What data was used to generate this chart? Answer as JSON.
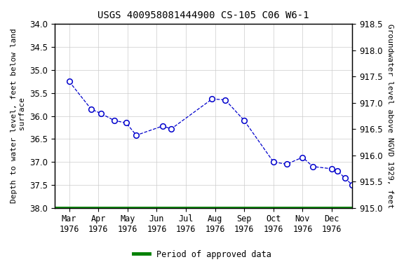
{
  "title": "USGS 400958081444900 CS-105 C06 W6-1",
  "ylabel_left": "Depth to water level, feet below land\n surface",
  "ylabel_right": "Groundwater level above NGVD 1929, feet",
  "xlabel_months": [
    "Mar\n1976",
    "Apr\n1976",
    "May\n1976",
    "Jun\n1976",
    "Jul\n1976",
    "Aug\n1976",
    "Sep\n1976",
    "Oct\n1976",
    "Nov\n1976",
    "Dec\n1976"
  ],
  "pts_x": [
    1.0,
    1.75,
    2.1,
    2.55,
    2.95,
    3.3,
    4.2,
    4.5,
    5.9,
    6.35,
    7.0,
    8.0,
    8.45,
    9.0,
    9.35,
    10.0,
    10.2,
    10.45,
    10.7
  ],
  "pts_y": [
    35.25,
    35.85,
    35.95,
    36.1,
    36.15,
    36.42,
    36.22,
    36.28,
    35.63,
    35.65,
    36.1,
    37.0,
    37.05,
    36.9,
    37.1,
    37.15,
    37.2,
    37.35,
    37.5
  ],
  "ylim_left": [
    38.0,
    34.0
  ],
  "ylim_right": [
    915.0,
    918.5
  ],
  "left_ticks": [
    34.0,
    34.5,
    35.0,
    35.5,
    36.0,
    36.5,
    37.0,
    37.5,
    38.0
  ],
  "right_ticks": [
    915.0,
    915.5,
    916.0,
    916.5,
    917.0,
    917.5,
    918.0,
    918.5
  ],
  "xlim": [
    0.5,
    10.7
  ],
  "xticks": [
    1,
    2,
    3,
    4,
    5,
    6,
    7,
    8,
    9,
    10
  ],
  "line_color": "#0000cc",
  "marker_facecolor": "white",
  "marker_edgecolor": "#0000cc",
  "green_line_color": "#008000",
  "background_color": "#ffffff",
  "plot_bg_color": "#ffffff",
  "grid_color": "#cccccc",
  "legend_label": "Period of approved data",
  "title_fontsize": 10,
  "axis_label_fontsize": 8,
  "tick_fontsize": 8.5,
  "legend_fontsize": 8.5
}
